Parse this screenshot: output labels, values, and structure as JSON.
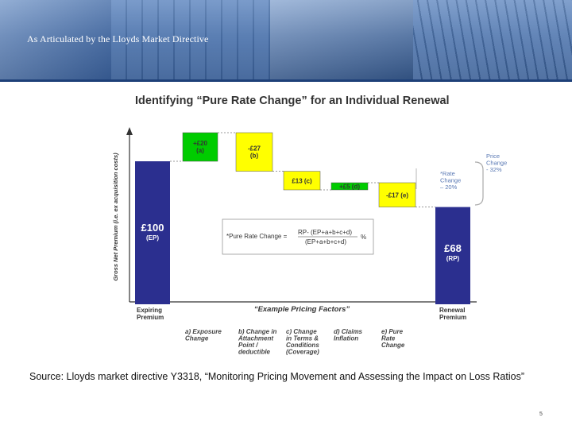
{
  "banner": {
    "title": "As Articulated by the Lloyds Market Directive"
  },
  "colors": {
    "navy": "#2b2f8f",
    "green": "#00cc00",
    "yellow": "#ffff00",
    "text": "#333333"
  },
  "chart_data": {
    "type": "waterfall",
    "title": "Identifying “Pure Rate Change” for an Individual Renewal",
    "ylabel": "Gross Net Premium (i.e. ex acquisition costs)",
    "subtitle": "“Example Pricing Factors”",
    "start": {
      "value": 100,
      "label": "£100",
      "sub": "(EP)",
      "axis_label": [
        "Expiring",
        "Premium"
      ]
    },
    "end": {
      "value": 68,
      "label": "£68",
      "sub": "(RP)",
      "axis_label": [
        "Renewal",
        "Premium"
      ]
    },
    "steps": [
      {
        "value": 20,
        "label": [
          "+£20",
          "(a)"
        ],
        "color": "#00cc00",
        "category": [
          "a) Exposure",
          "Change"
        ]
      },
      {
        "value": -27,
        "label": [
          "-£27",
          "(b)"
        ],
        "color": "#ffff00",
        "category": [
          "b) Change  in",
          "Attachment",
          "Point /",
          "deductible"
        ]
      },
      {
        "value": -13,
        "label": [
          "£13 (c)"
        ],
        "color": "#ffff00",
        "category": [
          "c) Change",
          "in Terms &",
          "Conditions",
          "(Coverage)"
        ]
      },
      {
        "value": 5,
        "label": [
          "+£5 (d)"
        ],
        "color": "#00cc00",
        "category": [
          "d) Claims",
          "Inflation"
        ]
      },
      {
        "value": -17,
        "label": [
          "-£17 (e)"
        ],
        "color": "#ffff00",
        "category": [
          "e) Pure",
          "Rate",
          "Change"
        ]
      }
    ],
    "annotations": {
      "price_change": [
        "Price",
        "Change",
        "- 32%"
      ],
      "rate_change": [
        "*Rate",
        "Change",
        "– 20%"
      ],
      "formula": {
        "prefix": "*Pure Rate Change  =",
        "numerator": "RP- (EP+a+b+c+d)",
        "denominator": "(EP+a+b+c+d)",
        "suffix": "%"
      }
    }
  },
  "source": "Source:  Lloyds market directive Y3318, “Monitoring Pricing Movement and Assessing the Impact on Loss Ratios”",
  "page": {
    "number": "5"
  }
}
